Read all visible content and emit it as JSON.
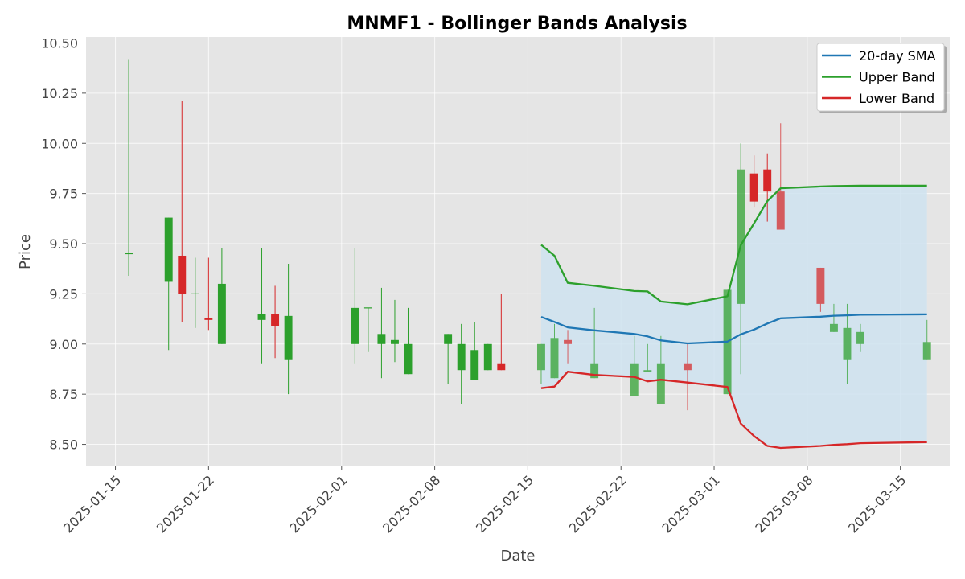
{
  "chart_data": {
    "type": "candlestick",
    "title": "MNMF1 - Bollinger Bands Analysis",
    "xlabel": "Date",
    "ylabel": "Price",
    "ylim": [
      8.39,
      10.53
    ],
    "xlim": [
      "2025-01-12T19:00",
      "2025-03-18T17:00"
    ],
    "y_ticks": [
      8.5,
      8.75,
      9.0,
      9.25,
      9.5,
      9.75,
      10.0,
      10.25,
      10.5
    ],
    "y_tick_labels": [
      "8.50",
      "8.75",
      "9.00",
      "9.25",
      "9.50",
      "9.75",
      "10.00",
      "10.25",
      "10.50"
    ],
    "x_ticks": [
      "2025-01-15",
      "2025-01-22",
      "2025-02-01",
      "2025-02-08",
      "2025-02-15",
      "2025-02-22",
      "2025-03-01",
      "2025-03-08",
      "2025-03-15"
    ],
    "grid": true,
    "legend_position": "top-right",
    "legend": [
      {
        "label": "20-day SMA",
        "color": "#1f77b4"
      },
      {
        "label": "Upper Band",
        "color": "#2ca02c"
      },
      {
        "label": "Lower Band",
        "color": "#d62728"
      }
    ],
    "colors": {
      "up": "#2ca02c",
      "down": "#d62728",
      "band_fill": "#cfe3f0",
      "plot_background": "#e5e5e5"
    },
    "candles": [
      {
        "date": "2025-01-16",
        "open": 9.45,
        "high": 10.42,
        "low": 9.34,
        "close": 9.45
      },
      {
        "date": "2025-01-19",
        "open": 9.31,
        "high": 9.63,
        "low": 8.97,
        "close": 9.63
      },
      {
        "date": "2025-01-20",
        "open": 9.44,
        "high": 10.21,
        "low": 9.11,
        "close": 9.25
      },
      {
        "date": "2025-01-21",
        "open": 9.25,
        "high": 9.43,
        "low": 9.08,
        "close": 9.25
      },
      {
        "date": "2025-01-22",
        "open": 9.13,
        "high": 9.43,
        "low": 9.07,
        "close": 9.12
      },
      {
        "date": "2025-01-23",
        "open": 9.0,
        "high": 9.48,
        "low": 9.0,
        "close": 9.3
      },
      {
        "date": "2025-01-26",
        "open": 9.12,
        "high": 9.48,
        "low": 8.9,
        "close": 9.15
      },
      {
        "date": "2025-01-27",
        "open": 9.15,
        "high": 9.29,
        "low": 8.93,
        "close": 9.09
      },
      {
        "date": "2025-01-28",
        "open": 8.92,
        "high": 9.4,
        "low": 8.75,
        "close": 9.14
      },
      {
        "date": "2025-02-02",
        "open": 9.0,
        "high": 9.48,
        "low": 8.9,
        "close": 9.18
      },
      {
        "date": "2025-02-03",
        "open": 9.18,
        "high": 9.18,
        "low": 8.96,
        "close": 9.18
      },
      {
        "date": "2025-02-04",
        "open": 9.0,
        "high": 9.28,
        "low": 8.83,
        "close": 9.05
      },
      {
        "date": "2025-02-05",
        "open": 9.0,
        "high": 9.22,
        "low": 8.91,
        "close": 9.02
      },
      {
        "date": "2025-02-06",
        "open": 8.85,
        "high": 9.18,
        "low": 8.85,
        "close": 9.0
      },
      {
        "date": "2025-02-09",
        "open": 9.0,
        "high": 9.05,
        "low": 8.8,
        "close": 9.05
      },
      {
        "date": "2025-02-10",
        "open": 8.87,
        "high": 9.1,
        "low": 8.7,
        "close": 9.0
      },
      {
        "date": "2025-02-11",
        "open": 8.82,
        "high": 9.11,
        "low": 8.82,
        "close": 8.97
      },
      {
        "date": "2025-02-12",
        "open": 8.87,
        "high": 9.0,
        "low": 8.87,
        "close": 9.0
      },
      {
        "date": "2025-02-13",
        "open": 8.9,
        "high": 9.25,
        "low": 8.87,
        "close": 8.87
      },
      {
        "date": "2025-02-16",
        "open": 8.87,
        "high": 9.0,
        "low": 8.8,
        "close": 9.0
      },
      {
        "date": "2025-02-17",
        "open": 8.83,
        "high": 9.1,
        "low": 8.83,
        "close": 9.03
      },
      {
        "date": "2025-02-18",
        "open": 9.02,
        "high": 9.07,
        "low": 8.9,
        "close": 9.0
      },
      {
        "date": "2025-02-20",
        "open": 8.83,
        "high": 9.18,
        "low": 8.83,
        "close": 8.9
      },
      {
        "date": "2025-02-23",
        "open": 8.74,
        "high": 9.04,
        "low": 8.74,
        "close": 8.9
      },
      {
        "date": "2025-02-24",
        "open": 8.86,
        "high": 9.0,
        "low": 8.86,
        "close": 8.87
      },
      {
        "date": "2025-02-25",
        "open": 8.7,
        "high": 9.04,
        "low": 8.7,
        "close": 8.9
      },
      {
        "date": "2025-02-27",
        "open": 8.9,
        "high": 9.0,
        "low": 8.67,
        "close": 8.87
      },
      {
        "date": "2025-03-02",
        "open": 8.75,
        "high": 9.27,
        "low": 8.75,
        "close": 9.27
      },
      {
        "date": "2025-03-03",
        "open": 9.2,
        "high": 10.0,
        "low": 8.85,
        "close": 9.87
      },
      {
        "date": "2025-03-04",
        "open": 9.85,
        "high": 9.94,
        "low": 9.68,
        "close": 9.71
      },
      {
        "date": "2025-03-05",
        "open": 9.87,
        "high": 9.95,
        "low": 9.61,
        "close": 9.76
      },
      {
        "date": "2025-03-06",
        "open": 9.76,
        "high": 10.1,
        "low": 9.57,
        "close": 9.57
      },
      {
        "date": "2025-03-09",
        "open": 9.38,
        "high": 9.38,
        "low": 9.16,
        "close": 9.2
      },
      {
        "date": "2025-03-10",
        "open": 9.06,
        "high": 9.2,
        "low": 9.06,
        "close": 9.1
      },
      {
        "date": "2025-03-11",
        "open": 8.92,
        "high": 9.2,
        "low": 8.8,
        "close": 9.08
      },
      {
        "date": "2025-03-12",
        "open": 9.0,
        "high": 9.1,
        "low": 8.96,
        "close": 9.06
      },
      {
        "date": "2025-03-17",
        "open": 8.92,
        "high": 9.12,
        "low": 8.92,
        "close": 9.01
      }
    ],
    "faded_candle_dates": [
      "2025-02-16",
      "2025-02-17",
      "2025-02-18",
      "2025-02-20",
      "2025-02-23",
      "2025-02-24",
      "2025-02-25",
      "2025-02-27",
      "2025-03-02",
      "2025-03-03",
      "2025-03-06",
      "2025-03-09",
      "2025-03-10",
      "2025-03-11",
      "2025-03-12",
      "2025-03-17"
    ],
    "series": [
      {
        "name": "20-day SMA",
        "color": "#1f77b4",
        "points": [
          {
            "date": "2025-02-16",
            "value": 9.135
          },
          {
            "date": "2025-02-17",
            "value": 9.11
          },
          {
            "date": "2025-02-18",
            "value": 9.083
          },
          {
            "date": "2025-02-20",
            "value": 9.068
          },
          {
            "date": "2025-02-23",
            "value": 9.05
          },
          {
            "date": "2025-02-24",
            "value": 9.038
          },
          {
            "date": "2025-02-25",
            "value": 9.018
          },
          {
            "date": "2025-02-27",
            "value": 9.003
          },
          {
            "date": "2025-03-02",
            "value": 9.012
          },
          {
            "date": "2025-03-03",
            "value": 9.048
          },
          {
            "date": "2025-03-04",
            "value": 9.072
          },
          {
            "date": "2025-03-05",
            "value": 9.102
          },
          {
            "date": "2025-03-06",
            "value": 9.128
          },
          {
            "date": "2025-03-09",
            "value": 9.136
          },
          {
            "date": "2025-03-10",
            "value": 9.141
          },
          {
            "date": "2025-03-11",
            "value": 9.143
          },
          {
            "date": "2025-03-12",
            "value": 9.146
          },
          {
            "date": "2025-03-17",
            "value": 9.148
          }
        ]
      },
      {
        "name": "Upper Band",
        "color": "#2ca02c",
        "points": [
          {
            "date": "2025-02-16",
            "value": 9.494
          },
          {
            "date": "2025-02-17",
            "value": 9.44
          },
          {
            "date": "2025-02-18",
            "value": 9.305
          },
          {
            "date": "2025-02-20",
            "value": 9.29
          },
          {
            "date": "2025-02-23",
            "value": 9.264
          },
          {
            "date": "2025-02-24",
            "value": 9.262
          },
          {
            "date": "2025-02-25",
            "value": 9.212
          },
          {
            "date": "2025-02-27",
            "value": 9.198
          },
          {
            "date": "2025-03-02",
            "value": 9.238
          },
          {
            "date": "2025-03-03",
            "value": 9.492
          },
          {
            "date": "2025-03-04",
            "value": 9.602
          },
          {
            "date": "2025-03-05",
            "value": 9.712
          },
          {
            "date": "2025-03-06",
            "value": 9.776
          },
          {
            "date": "2025-03-09",
            "value": 9.785
          },
          {
            "date": "2025-03-10",
            "value": 9.787
          },
          {
            "date": "2025-03-11",
            "value": 9.788
          },
          {
            "date": "2025-03-12",
            "value": 9.789
          },
          {
            "date": "2025-03-17",
            "value": 9.789
          }
        ]
      },
      {
        "name": "Lower Band",
        "color": "#d62728",
        "points": [
          {
            "date": "2025-02-16",
            "value": 8.78
          },
          {
            "date": "2025-02-17",
            "value": 8.788
          },
          {
            "date": "2025-02-18",
            "value": 8.862
          },
          {
            "date": "2025-02-20",
            "value": 8.846
          },
          {
            "date": "2025-02-23",
            "value": 8.836
          },
          {
            "date": "2025-02-24",
            "value": 8.814
          },
          {
            "date": "2025-02-25",
            "value": 8.822
          },
          {
            "date": "2025-02-27",
            "value": 8.808
          },
          {
            "date": "2025-03-02",
            "value": 8.786
          },
          {
            "date": "2025-03-03",
            "value": 8.604
          },
          {
            "date": "2025-03-04",
            "value": 8.541
          },
          {
            "date": "2025-03-05",
            "value": 8.492
          },
          {
            "date": "2025-03-06",
            "value": 8.482
          },
          {
            "date": "2025-03-09",
            "value": 8.492
          },
          {
            "date": "2025-03-10",
            "value": 8.498
          },
          {
            "date": "2025-03-11",
            "value": 8.501
          },
          {
            "date": "2025-03-12",
            "value": 8.506
          },
          {
            "date": "2025-03-17",
            "value": 8.511
          }
        ]
      }
    ]
  }
}
